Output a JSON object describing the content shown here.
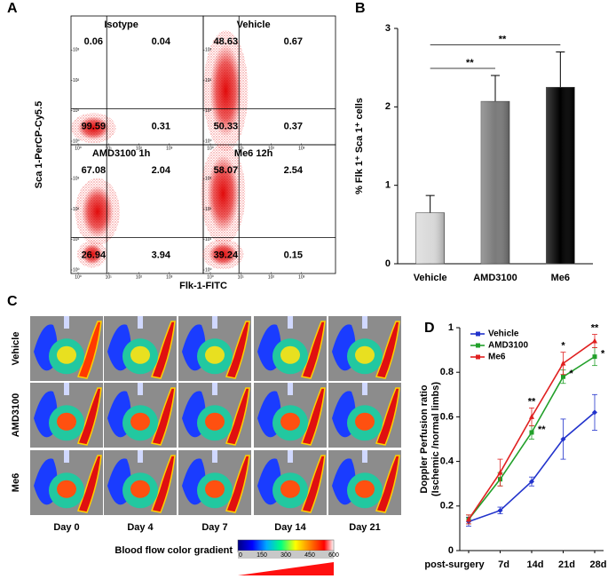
{
  "panel_labels": [
    "A",
    "B",
    "C",
    "D"
  ],
  "flow_cytometry": {
    "y_label": "Sca 1-PerCP-Cy5.5",
    "x_label": "Flk-1-FITC",
    "lim": [
      1,
      10000
    ],
    "ticks": [
      {
        "value": 1,
        "label": "10⁰"
      },
      {
        "value": 10,
        "label": "10¹"
      },
      {
        "value": 100,
        "label": "10²"
      },
      {
        "value": 1000,
        "label": "10³"
      }
    ],
    "plots": [
      {
        "title": "Isotype",
        "quadrants": [
          0.06,
          0.04,
          99.59,
          0.31
        ]
      },
      {
        "title": "Vehicle",
        "quadrants": [
          48.63,
          0.67,
          50.33,
          0.37
        ]
      },
      {
        "title": "AMD3100  1h",
        "quadrants": [
          67.08,
          2.04,
          26.94,
          3.94
        ]
      },
      {
        "title": "Me6  12h",
        "quadrants": [
          58.07,
          2.54,
          39.24,
          0.15
        ]
      }
    ]
  },
  "perfusion_images": {
    "rows": [
      "Vehicle",
      "AMD3100",
      "Me6"
    ],
    "columns": [
      "Day 0",
      "Day 4",
      "Day 7",
      "Day 14",
      "Day 21"
    ],
    "gradient_title": "Blood flow color gradient",
    "gradient_ticks": [
      0,
      150,
      300,
      450,
      600
    ]
  },
  "chart_data": [
    {
      "type": "bar",
      "ylabel": "% Flk 1⁺ Sca 1⁺ cells",
      "categories": [
        "Vehicle",
        "AMD3100",
        "Me6"
      ],
      "values": [
        0.65,
        2.07,
        2.25
      ],
      "errors": [
        0.22,
        0.33,
        0.45
      ],
      "colors": [
        "#d9d9d9",
        "#7a7a7a",
        "#000000"
      ],
      "significance": [
        null,
        "**",
        "**"
      ],
      "ylim": [
        0,
        3
      ],
      "yticks": [
        0,
        1,
        2,
        3
      ]
    },
    {
      "type": "line",
      "ylabel": [
        "Doppler Perfusion ratio",
        "(Ischemic /normal limbs)"
      ],
      "categories": [
        "post-surgery",
        "7d",
        "14d",
        "21d",
        "28d"
      ],
      "series": [
        {
          "name": "Vehicle",
          "color": "#2233cc",
          "values": [
            0.13,
            0.18,
            0.31,
            0.5,
            0.62
          ],
          "errors": [
            0.02,
            0.015,
            0.02,
            0.09,
            0.08
          ],
          "significance": [
            null,
            null,
            null,
            null,
            null
          ]
        },
        {
          "name": "AMD3100",
          "color": "#22a02a",
          "values": [
            0.14,
            0.32,
            0.53,
            0.78,
            0.87
          ],
          "errors": [
            0.02,
            0.03,
            0.03,
            0.03,
            0.04
          ],
          "significance": [
            null,
            null,
            "**",
            "*",
            "*"
          ]
        },
        {
          "name": "Me6",
          "color": "#e02020",
          "values": [
            0.14,
            0.35,
            0.6,
            0.84,
            0.94
          ],
          "errors": [
            0.02,
            0.06,
            0.04,
            0.05,
            0.03
          ],
          "significance": [
            null,
            null,
            "**",
            "*",
            "**"
          ]
        }
      ],
      "ylim": [
        0,
        1
      ],
      "yticks": [
        0,
        0.2,
        0.4,
        0.6,
        0.8,
        1
      ],
      "legend": "upper left"
    }
  ]
}
